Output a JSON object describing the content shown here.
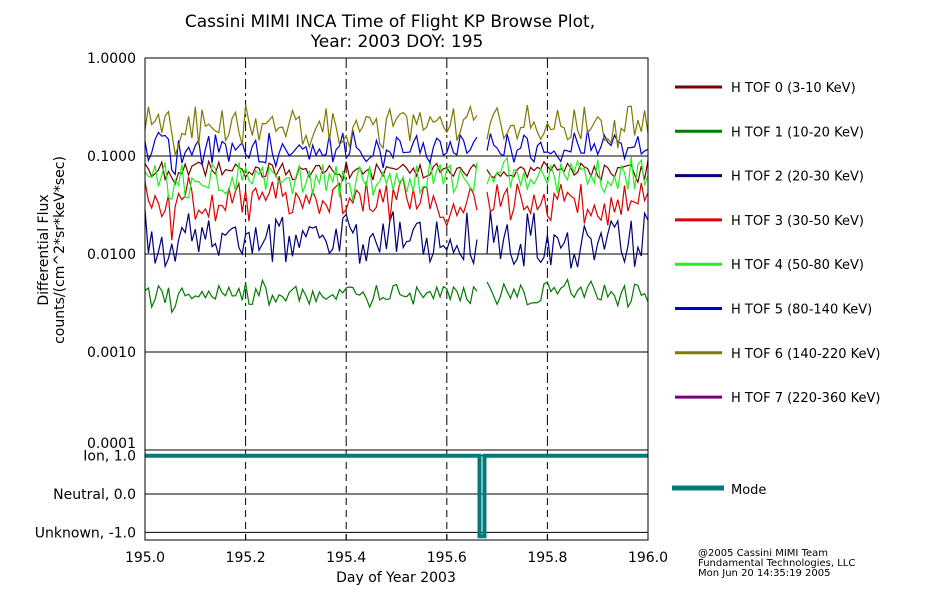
{
  "chart_data": [
    {
      "type": "line",
      "title": "Cassini MIMI INCA Time of Flight KP Browse Plot,",
      "subtitle": "Year: 2003 DOY: 195",
      "ylabel_line1": "Differential Flux",
      "ylabel_line2": "counts/(cm^2*sr*keV*sec)",
      "yscale": "log",
      "ylim": [
        0.0001,
        1.0
      ],
      "xlim": [
        195.0,
        196.0
      ],
      "yticks": [
        {
          "value": 1.0,
          "label": "1.0000"
        },
        {
          "value": 0.1,
          "label": "0.1000"
        },
        {
          "value": 0.01,
          "label": "0.0100"
        },
        {
          "value": 0.001,
          "label": "0.0010"
        },
        {
          "value": 0.0001,
          "label": "0.0001"
        }
      ],
      "vgrid_x": [
        195.2,
        195.4,
        195.6,
        195.8
      ],
      "data_gap": [
        195.66,
        195.675
      ],
      "series": [
        {
          "name": "H TOF 0 (3-10 KeV)",
          "color": "#7a0000",
          "level": 0.07,
          "spread": 0.08,
          "seed": 11
        },
        {
          "name": "H TOF 1 (10-20 KeV)",
          "color": "#007a00",
          "level": 0.004,
          "spread": 0.1,
          "seed": 23
        },
        {
          "name": "H TOF 2 (20-30 KeV)",
          "color": "#00007a",
          "level": 0.014,
          "spread": 0.22,
          "seed": 37
        },
        {
          "name": "H TOF 3 (30-50 KeV)",
          "color": "#dd0000",
          "level": 0.035,
          "spread": 0.18,
          "seed": 41
        },
        {
          "name": "H TOF 4 (50-80 KeV)",
          "color": "#22ee22",
          "level": 0.06,
          "spread": 0.16,
          "seed": 53
        },
        {
          "name": "H TOF 5 (80-140 KeV)",
          "color": "#0000cc",
          "level": 0.12,
          "spread": 0.14,
          "seed": 67
        },
        {
          "name": "H TOF 6 (140-220 KeV)",
          "color": "#807800",
          "level": 0.2,
          "spread": 0.17,
          "seed": 79
        },
        {
          "name": "H TOF 7 (220-360 KeV)",
          "color": "#7a0080",
          "level": null,
          "spread": 0,
          "seed": 0
        }
      ]
    },
    {
      "type": "line",
      "xlabel": "Day of Year 2003",
      "xlim": [
        195.0,
        196.0
      ],
      "ylim": [
        -1.2,
        1.15
      ],
      "yticks": [
        {
          "value": 1.0,
          "label": "Ion, 1.0"
        },
        {
          "value": 0.0,
          "label": "Neutral, 0.0"
        },
        {
          "value": -1.0,
          "label": "Unknown, -1.0"
        }
      ],
      "xticks": [
        {
          "value": 195.0,
          "label": "195.0"
        },
        {
          "value": 195.2,
          "label": "195.2"
        },
        {
          "value": 195.4,
          "label": "195.4"
        },
        {
          "value": 195.6,
          "label": "195.6"
        },
        {
          "value": 195.8,
          "label": "195.8"
        },
        {
          "value": 196.0,
          "label": "196.0"
        }
      ],
      "series": [
        {
          "name": "Mode",
          "color": "#007a7a",
          "points": [
            [
              195.0,
              1.0
            ],
            [
              195.665,
              1.0
            ],
            [
              195.665,
              -1.1
            ],
            [
              195.675,
              -1.1
            ],
            [
              195.675,
              1.0
            ],
            [
              196.0,
              1.0
            ]
          ]
        }
      ]
    }
  ],
  "credits": [
    "@2005 Cassini MIMI Team",
    "Fundamental Technologies, LLC",
    "Mon Jun 20 14:35:19 2005"
  ]
}
